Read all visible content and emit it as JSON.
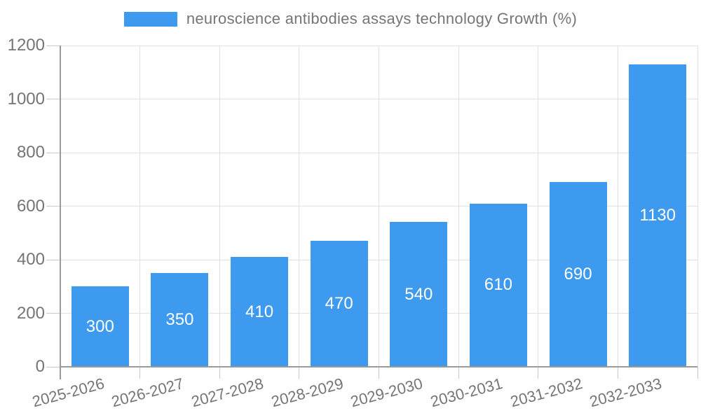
{
  "legend": {
    "label": "neuroscience antibodies assays technology Growth (%)"
  },
  "chart_data": {
    "type": "bar",
    "title": "neuroscience antibodies assays technology Growth (%)",
    "categories": [
      "2025-2026",
      "2026-2027",
      "2027-2028",
      "2028-2029",
      "2029-2030",
      "2030-2031",
      "2031-2032",
      "2032-2033"
    ],
    "values": [
      300,
      350,
      410,
      470,
      540,
      610,
      690,
      1130
    ],
    "xlabel": "",
    "ylabel": "",
    "ylim": [
      0,
      1200
    ],
    "y_ticks": [
      0,
      200,
      400,
      600,
      800,
      1000,
      1200
    ],
    "grid": true,
    "legend_position": "top",
    "bar_label_position": "inside-center",
    "colors": {
      "bar": "#3D9AEF",
      "text": "#757575",
      "grid": "#e2e2e2",
      "axis": "#9a9a9a",
      "tick": "#c9c9c9",
      "value_label": "#ffffff",
      "background": "#ffffff"
    }
  }
}
